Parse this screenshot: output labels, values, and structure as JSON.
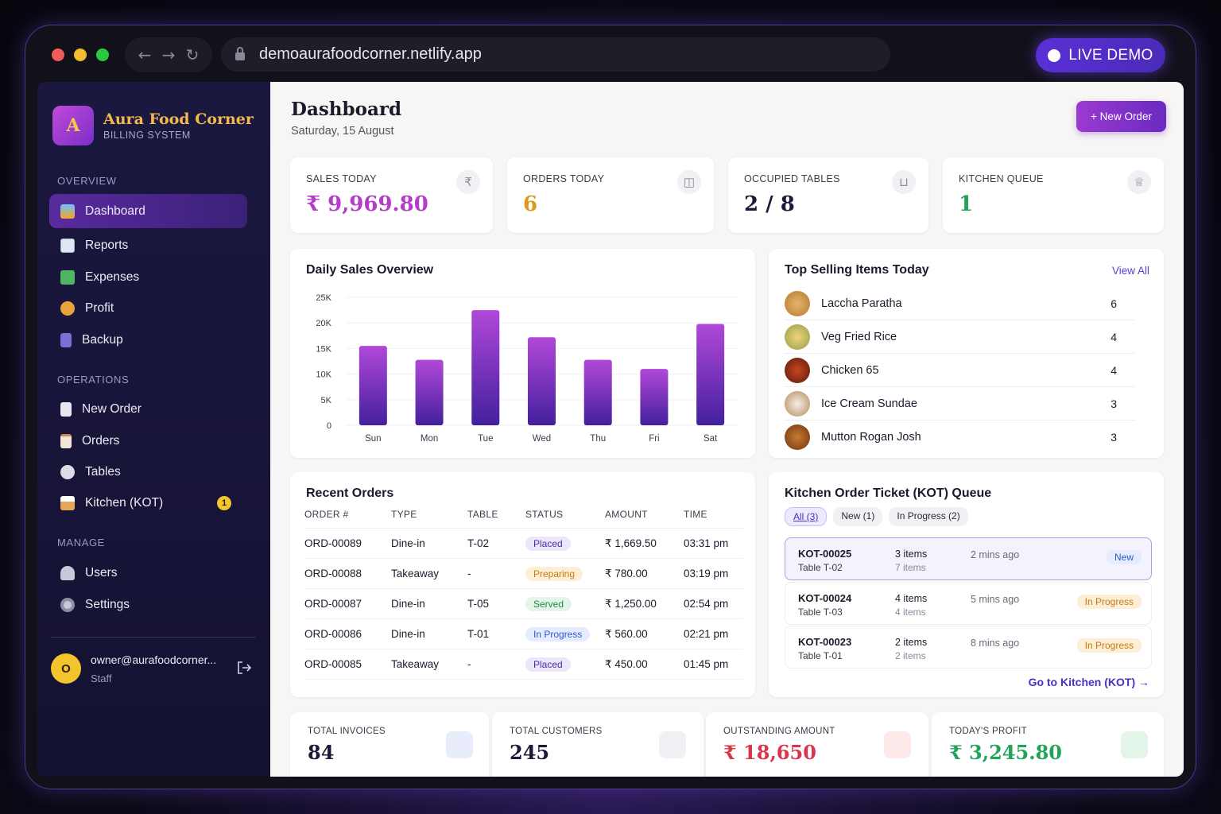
{
  "browser": {
    "url": "demoaurafoodcorner.netlify.app",
    "live_label": "LIVE DEMO"
  },
  "brand": {
    "initial": "A",
    "name": "Aura Food Corner",
    "subtitle": "BILLING SYSTEM"
  },
  "sidebar": {
    "overview_label": "OVERVIEW",
    "overview": [
      {
        "label": "Dashboard",
        "icon": "chart-icon"
      },
      {
        "label": "Reports",
        "icon": "trend-icon"
      },
      {
        "label": "Expenses",
        "icon": "money-icon"
      },
      {
        "label": "Profit",
        "icon": "money-bag-icon"
      },
      {
        "label": "Backup",
        "icon": "storage-icon"
      }
    ],
    "operations_label": "OPERATIONS",
    "operations": [
      {
        "label": "New Order",
        "icon": "receipt-icon"
      },
      {
        "label": "Orders",
        "icon": "clipboard-icon"
      },
      {
        "label": "Tables",
        "icon": "plate-icon"
      },
      {
        "label": "Kitchen (KOT)",
        "icon": "chef-icon",
        "badge": "1"
      }
    ],
    "manage_label": "MANAGE",
    "manage": [
      {
        "label": "Users",
        "icon": "users-icon"
      },
      {
        "label": "Settings",
        "icon": "gear-icon"
      }
    ],
    "user": {
      "initial": "O",
      "email": "owner@aurafoodcorner...",
      "role": "Staff"
    }
  },
  "header": {
    "title": "Dashboard",
    "date": "Saturday, 15 August",
    "new_order": "+ New Order"
  },
  "stats": [
    {
      "label": "SALES TODAY",
      "value": "₹ 9,969.80",
      "color": "#b43cc8",
      "icon": "rupee-icon"
    },
    {
      "label": "ORDERS TODAY",
      "value": "6",
      "color": "#d99a1e",
      "icon": "bag-icon"
    },
    {
      "label": "OCCUPIED TABLES",
      "value": "2 / 8",
      "color": "#1c1a3a",
      "icon": "cart-icon"
    },
    {
      "label": "KITCHEN QUEUE",
      "value": "1",
      "color": "#22a35a",
      "icon": "chef-hat-icon"
    }
  ],
  "daily_sales": {
    "title": "Daily Sales Overview"
  },
  "chart_data": {
    "type": "bar",
    "categories": [
      "Sun",
      "Mon",
      "Tue",
      "Wed",
      "Thu",
      "Fri",
      "Sat"
    ],
    "values": [
      15500,
      12800,
      22500,
      17200,
      12800,
      11000,
      19800
    ],
    "yticks": [
      "0",
      "5K",
      "10K",
      "15K",
      "20K",
      "25K"
    ],
    "ylim": [
      0,
      25000
    ],
    "grid": true,
    "title": "Daily Sales Overview"
  },
  "top_selling": {
    "title": "Top Selling Items Today",
    "view_all": "View All",
    "items": [
      {
        "name": "Laccha Paratha",
        "count": "6"
      },
      {
        "name": "Veg Fried Rice",
        "count": "4"
      },
      {
        "name": "Chicken 65",
        "count": "4"
      },
      {
        "name": "Ice Cream Sundae",
        "count": "3"
      },
      {
        "name": "Mutton Rogan Josh",
        "count": "3"
      }
    ]
  },
  "recent_orders": {
    "title": "Recent Orders",
    "columns": [
      "ORDER #",
      "TYPE",
      "TABLE",
      "STATUS",
      "AMOUNT",
      "TIME"
    ],
    "rows": [
      {
        "id": "ORD-00089",
        "type": "Dine-in",
        "table": "T-02",
        "status": "Placed",
        "amount": "₹ 1,669.50",
        "time": "03:31 pm"
      },
      {
        "id": "ORD-00088",
        "type": "Takeaway",
        "table": "-",
        "status": "Preparing",
        "amount": "₹ 780.00",
        "time": "03:19 pm"
      },
      {
        "id": "ORD-00087",
        "type": "Dine-in",
        "table": "T-05",
        "status": "Served",
        "amount": "₹ 1,250.00",
        "time": "02:54 pm"
      },
      {
        "id": "ORD-00086",
        "type": "Dine-in",
        "table": "T-01",
        "status": "In Progress",
        "amount": "₹ 560.00",
        "time": "02:21 pm"
      },
      {
        "id": "ORD-00085",
        "type": "Takeaway",
        "table": "-",
        "status": "Placed",
        "amount": "₹ 450.00",
        "time": "01:45 pm"
      }
    ]
  },
  "kot": {
    "title": "Kitchen Order Ticket (KOT) Queue",
    "tabs": [
      "All (3)",
      "New (1)",
      "In Progress (2)"
    ],
    "tickets": [
      {
        "id": "KOT-00025",
        "table": "Table T-02",
        "items": "3 items",
        "items_sub": "7 items",
        "time": "2 mins ago",
        "status": "New"
      },
      {
        "id": "KOT-00024",
        "table": "Table T-03",
        "items": "4 items",
        "items_sub": "4 items",
        "time": "5 mins ago",
        "status": "In Progress"
      },
      {
        "id": "KOT-00023",
        "table": "Table T-01",
        "items": "2 items",
        "items_sub": "2 items",
        "time": "8 mins ago",
        "status": "In Progress"
      }
    ],
    "go_link": "Go to Kitchen (KOT) →"
  },
  "bottom_stats": [
    {
      "label": "TOTAL INVOICES",
      "value": "84",
      "color": "#1c1a3a",
      "icon": "invoice-icon"
    },
    {
      "label": "TOTAL CUSTOMERS",
      "value": "245",
      "color": "#1c1a3a",
      "icon": "customers-icon"
    },
    {
      "label": "OUTSTANDING AMOUNT",
      "value": "₹ 18,650",
      "color": "#d8364a",
      "icon": "wallet-icon"
    },
    {
      "label": "TODAY'S PROFIT",
      "value": "₹ 3,245.80",
      "color": "#22a35a",
      "icon": "growth-icon"
    }
  ]
}
